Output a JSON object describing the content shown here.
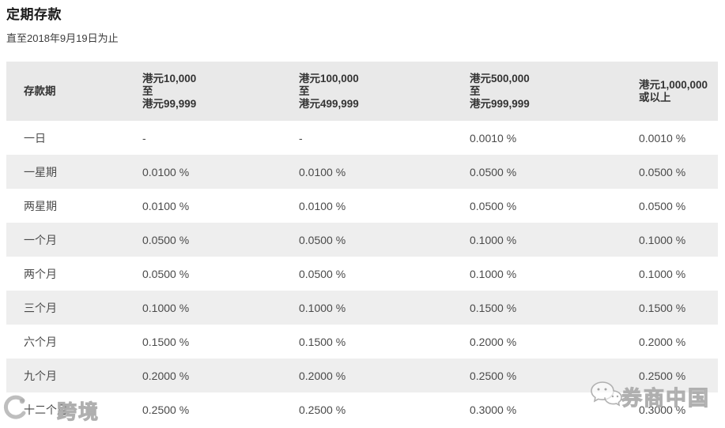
{
  "page": {
    "title": "定期存款",
    "subtitle": "直至2018年9月19日为止"
  },
  "table": {
    "columns": [
      "存款期",
      "港元10,000\n至\n港元99,999",
      "港元100,000\n至\n港元499,999",
      "港元500,000\n至\n港元999,999",
      "港元1,000,000\n或以上"
    ],
    "rows": [
      {
        "period": "一日",
        "rates": [
          "-",
          "-",
          "0.0010 %",
          "0.0010 %"
        ]
      },
      {
        "period": "一星期",
        "rates": [
          "0.0100 %",
          "0.0100 %",
          "0.0500 %",
          "0.0500 %"
        ]
      },
      {
        "period": "两星期",
        "rates": [
          "0.0100 %",
          "0.0100 %",
          "0.0500 %",
          "0.0500 %"
        ]
      },
      {
        "period": "一个月",
        "rates": [
          "0.0500 %",
          "0.0500 %",
          "0.1000 %",
          "0.1000 %"
        ]
      },
      {
        "period": "两个月",
        "rates": [
          "0.0500 %",
          "0.0500 %",
          "0.1000 %",
          "0.1000 %"
        ]
      },
      {
        "period": "三个月",
        "rates": [
          "0.1000 %",
          "0.1000 %",
          "0.1500 %",
          "0.1500 %"
        ]
      },
      {
        "period": "六个月",
        "rates": [
          "0.1500 %",
          "0.1500 %",
          "0.2000 %",
          "0.2000 %"
        ]
      },
      {
        "period": "九个月",
        "rates": [
          "0.2000 %",
          "0.2000 %",
          "0.2500 %",
          "0.2500 %"
        ]
      },
      {
        "period": "十二个月",
        "rates": [
          "0.2500 %",
          "0.2500 %",
          "0.3000 %",
          "0.3000 %"
        ]
      }
    ]
  },
  "watermarks": {
    "left": {
      "visible_text": "跨境",
      "logo_icon": "ring-logo-icon"
    },
    "right": {
      "label": "券商中国",
      "icon": "wechat-chat-bubbles-icon"
    }
  },
  "colors": {
    "header_bg": "#e9e9e9",
    "stripe_bg": "#eeeeee",
    "header_text": "#333333",
    "body_text": "#4a4a4a",
    "title_text": "#1a1a1a",
    "watermark_stroke": "#a8a8a8"
  }
}
